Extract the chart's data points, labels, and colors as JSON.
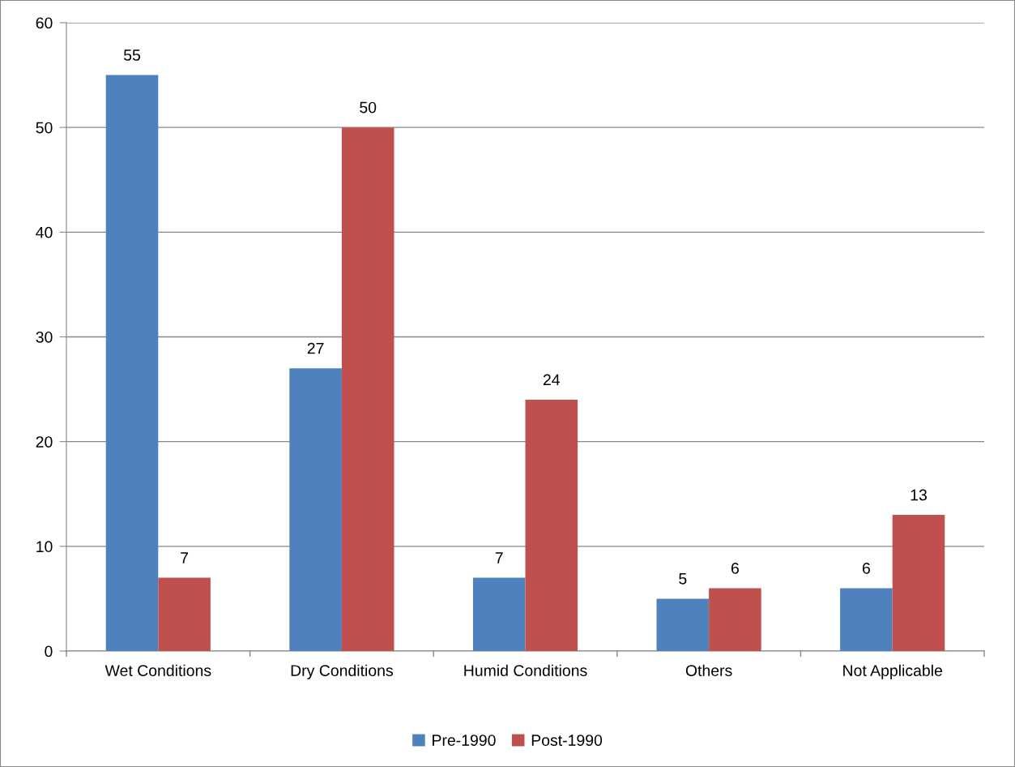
{
  "chart_data": {
    "type": "bar",
    "categories": [
      "Wet Conditions",
      "Dry Conditions",
      "Humid Conditions",
      "Others",
      "Not Applicable"
    ],
    "series": [
      {
        "name": "Pre-1990",
        "color": "#4f81bd",
        "values": [
          55,
          27,
          7,
          5,
          6
        ]
      },
      {
        "name": "Post-1990",
        "color": "#c0504d",
        "values": [
          7,
          50,
          24,
          6,
          13
        ]
      }
    ],
    "ylim": [
      0,
      60
    ],
    "yticks": [
      0,
      10,
      20,
      30,
      40,
      50,
      60
    ],
    "grid": "y",
    "legend": "bottom",
    "data_labels": true
  }
}
